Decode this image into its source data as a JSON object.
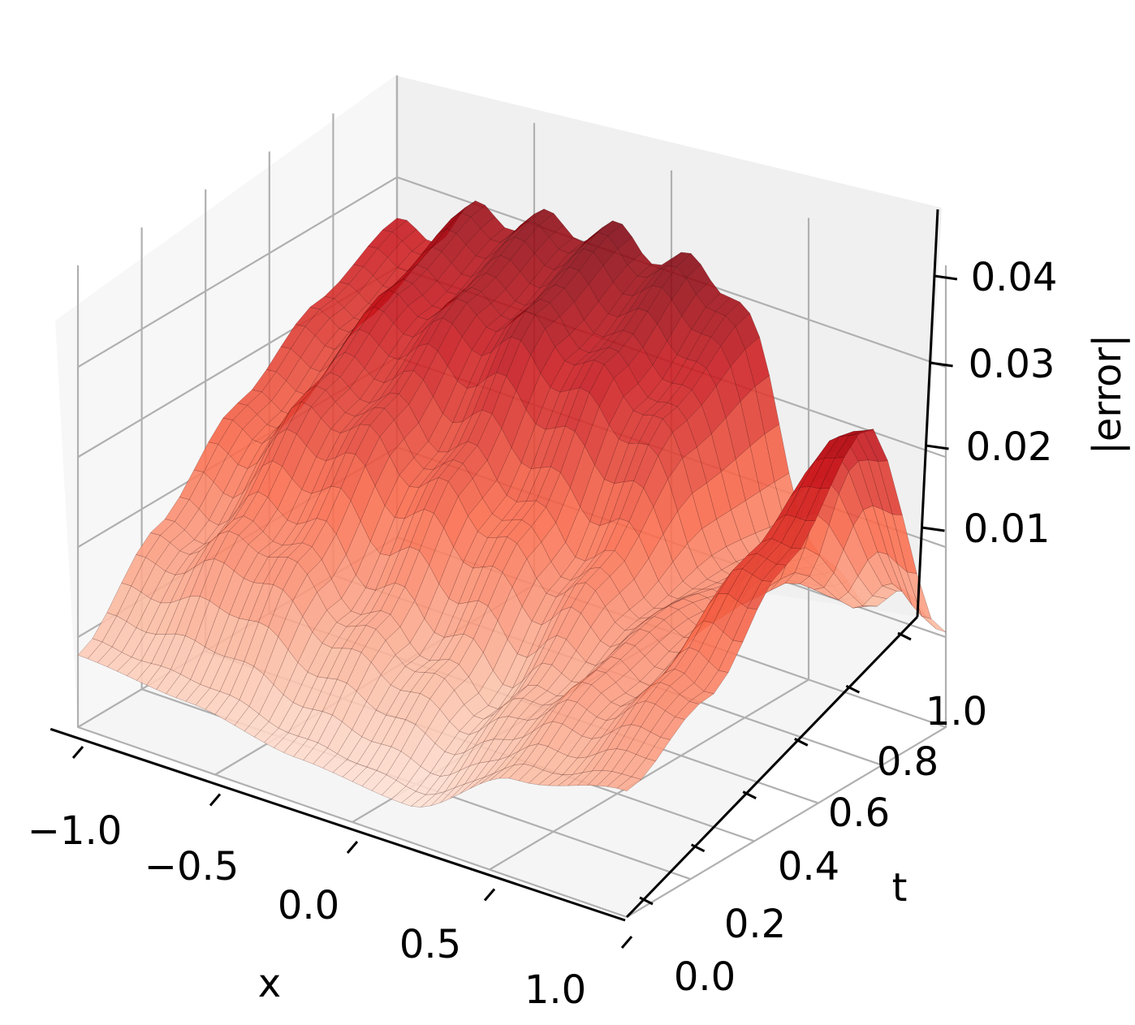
{
  "chart_data": {
    "type": "surface3d",
    "colormap": "Reds",
    "xlabel": "x",
    "ylabel": "t",
    "zlabel": "|error|",
    "x_ticks": [
      "−1.0",
      "−0.5",
      "0.0",
      "0.5",
      "1.0"
    ],
    "x_tick_values": [
      -1.0,
      -0.5,
      0.0,
      0.5,
      1.0
    ],
    "t_ticks": [
      "0.0",
      "0.2",
      "0.4",
      "0.6",
      "0.8",
      "1.0"
    ],
    "t_tick_values": [
      0.0,
      0.2,
      0.4,
      0.6,
      0.8,
      1.0
    ],
    "z_ticks": [
      "0.01",
      "0.02",
      "0.03",
      "0.04"
    ],
    "z_tick_values": [
      0.01,
      0.02,
      0.03,
      0.04
    ],
    "xlim": [
      -1.0,
      1.0
    ],
    "tlim": [
      0.0,
      1.0
    ],
    "zlim": [
      0.0,
      0.047
    ],
    "grid": true,
    "x_grid": [
      -1.0,
      -0.6,
      -0.2,
      0.2,
      0.6,
      1.0
    ],
    "t_samples": [
      0.0,
      0.25,
      0.5,
      0.75,
      1.0
    ],
    "z_profile": [
      [
        0.008,
        0.007,
        0.005,
        0.004,
        0.011,
        0.014
      ],
      [
        0.016,
        0.02,
        0.014,
        0.01,
        0.016,
        0.02
      ],
      [
        0.024,
        0.03,
        0.026,
        0.02,
        0.018,
        0.03
      ],
      [
        0.03,
        0.036,
        0.038,
        0.034,
        0.016,
        0.04
      ],
      [
        0.034,
        0.04,
        0.042,
        0.041,
        0.012,
        0.012
      ]
    ]
  }
}
